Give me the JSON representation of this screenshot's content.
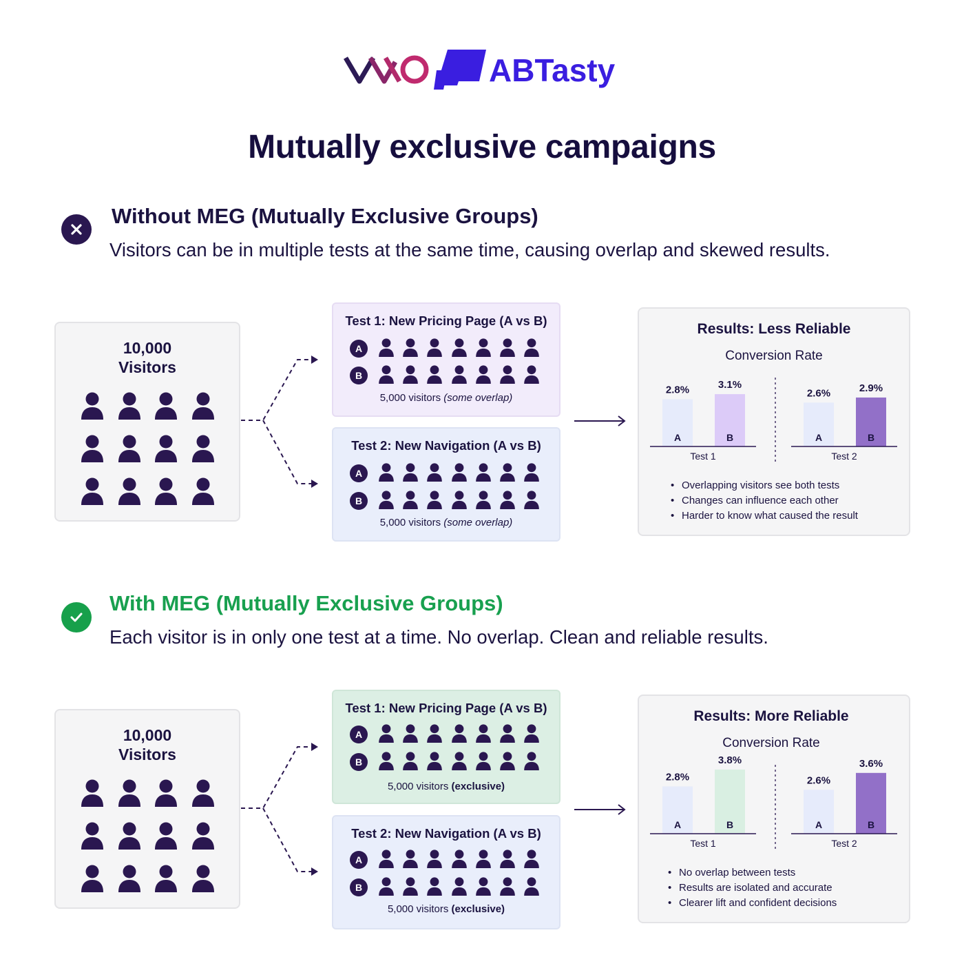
{
  "logos": {
    "left": "VWO",
    "right": "ABTasty",
    "colors": {
      "vwo_dark": "#2c1a55",
      "vwo_pink": "#c02a6e",
      "abtasty": "#3a1ee0"
    }
  },
  "title": "Mutually exclusive campaigns",
  "sections": [
    {
      "status": "x-icon",
      "heading": "Without MEG (Mutually Exclusive Groups)",
      "description": "Visitors can be in multiple tests at the same time, causing overlap and skewed results.",
      "visitors": "10,000\nVisitors",
      "tests": [
        {
          "title": "Test 1: New Pricing Page (A vs B)",
          "variants": [
            "A",
            "B"
          ],
          "footer_count": "5,000 visitors",
          "footer_note": "(some overlap)",
          "color": "purple"
        },
        {
          "title": "Test 2: New Navigation (A vs B)",
          "variants": [
            "A",
            "B"
          ],
          "footer_count": "5,000 visitors",
          "footer_note": "(some overlap)",
          "color": "blue"
        }
      ],
      "results": {
        "title": "Results: Less Reliable",
        "subtitle": "Conversion Rate",
        "bullets": [
          "Overlapping visitors see both tests",
          "Changes can influence each other",
          "Harder to know what caused the result"
        ]
      }
    },
    {
      "status": "check-icon",
      "heading": "With MEG (Mutually Exclusive Groups)",
      "description": "Each visitor is in only one test at a time. No overlap. Clean and reliable results.",
      "visitors": "10,000\nVisitors",
      "tests": [
        {
          "title": "Test 1: New Pricing Page (A vs B)",
          "variants": [
            "A",
            "B"
          ],
          "footer_count": "5,000 visitors",
          "footer_note": "(exclusive)",
          "color": "green"
        },
        {
          "title": "Test 2: New Navigation (A vs B)",
          "variants": [
            "A",
            "B"
          ],
          "footer_count": "5,000 visitors",
          "footer_note": "(exclusive)",
          "color": "blue"
        }
      ],
      "results": {
        "title": "Results: More Reliable",
        "subtitle": "Conversion Rate",
        "bullets": [
          "No overlap between tests",
          "Results are isolated and accurate",
          "Clearer lift and confident decisions"
        ]
      }
    }
  ],
  "chart_data": [
    {
      "type": "bar",
      "title": "Conversion Rate",
      "groups": [
        {
          "name": "Test 1",
          "categories": [
            "A",
            "B"
          ],
          "values": [
            2.8,
            3.1
          ],
          "labels": [
            "2.8%",
            "3.1%"
          ],
          "colors": [
            "#e6ebfb",
            "#dccbf8"
          ]
        },
        {
          "name": "Test 2",
          "categories": [
            "A",
            "B"
          ],
          "values": [
            2.6,
            2.9
          ],
          "labels": [
            "2.6%",
            "2.9%"
          ],
          "colors": [
            "#e6ebfb",
            "#9270c8"
          ]
        }
      ]
    },
    {
      "type": "bar",
      "title": "Conversion Rate",
      "groups": [
        {
          "name": "Test 1",
          "categories": [
            "A",
            "B"
          ],
          "values": [
            2.8,
            3.8
          ],
          "labels": [
            "2.8%",
            "3.8%"
          ],
          "colors": [
            "#e6ebfb",
            "#d9efe2"
          ]
        },
        {
          "name": "Test 2",
          "categories": [
            "A",
            "B"
          ],
          "values": [
            2.6,
            3.6
          ],
          "labels": [
            "2.6%",
            "3.6%"
          ],
          "colors": [
            "#e6ebfb",
            "#9270c8"
          ]
        }
      ]
    }
  ]
}
